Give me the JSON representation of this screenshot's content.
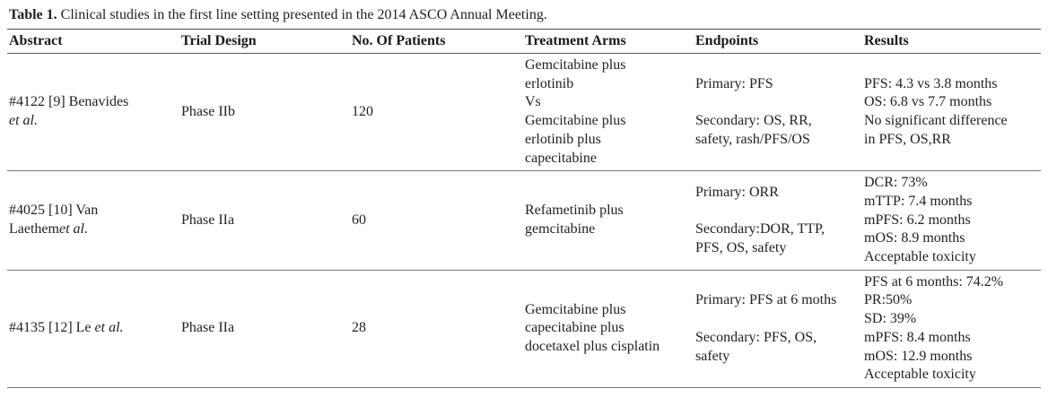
{
  "caption": {
    "label": "Table 1.",
    "text": " Clinical studies in the first line setting presented in the 2014 ASCO Annual Meeting."
  },
  "table": {
    "headers": [
      "Abstract",
      "Trial Design",
      "No. Of Patients",
      "Treatment Arms",
      "Endpoints",
      "Results"
    ],
    "rows": [
      {
        "abstract": "#4122 [9] Benavides\n",
        "abstract_etal": "et al.",
        "trial_design": "Phase IIb",
        "patients": "120",
        "treatment_arms": "Gemcitabine plus\nerlotinib\nVs\nGemcitabine plus\nerlotinib plus\ncapecitabine",
        "endpoints": "Primary: PFS\n\nSecondary: OS, RR,\nsafety, rash/PFS/OS",
        "results": "PFS: 4.3 vs 3.8 months\nOS: 6.8 vs 7.7 months\nNo significant difference\nin PFS, OS,RR"
      },
      {
        "abstract": "#4025 [10] Van\nLaethem",
        "abstract_etal": "et al.",
        "trial_design": "Phase IIa",
        "patients": "60",
        "treatment_arms": "Refametinib plus\ngemcitabine",
        "endpoints": "Primary: ORR\n\nSecondary:DOR, TTP,\nPFS, OS, safety",
        "results": "DCR: 73%\nmTTP: 7.4 months\nmPFS: 6.2 months\nmOS: 8.9 months\nAcceptable toxicity"
      },
      {
        "abstract": "#4135 [12] Le ",
        "abstract_etal": "et al.",
        "trial_design": "Phase IIa",
        "patients": "28",
        "treatment_arms": "Gemcitabine plus\ncapecitabine plus\ndocetaxel plus cisplatin",
        "endpoints": "Primary: PFS at 6 moths\n\nSecondary: PFS, OS,\nsafety",
        "results": "PFS at 6 months: 74.2%\nPR:50%\nSD: 39%\nmPFS: 8.4 months\nmOS: 12.9 months\nAcceptable toxicity"
      }
    ]
  },
  "colors": {
    "text": "#222222",
    "rule_top": "#4a4a4a",
    "rule_row": "#7a7a7a",
    "background": "#ffffff"
  }
}
